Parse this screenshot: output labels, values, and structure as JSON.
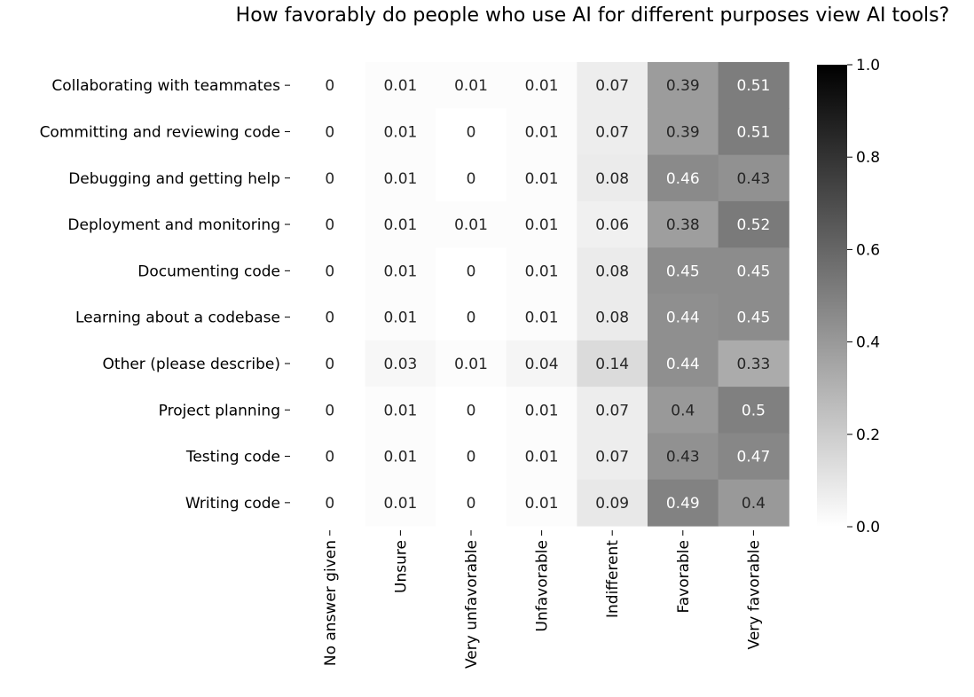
{
  "chart_data": {
    "type": "heatmap",
    "title": "How favorably do people who use AI for different purposes view AI tools?",
    "rows": [
      "Collaborating with teammates",
      "Committing and reviewing code",
      "Debugging and getting help",
      "Deployment and monitoring",
      "Documenting code",
      "Learning about a codebase",
      "Other (please describe)",
      "Project planning",
      "Testing code",
      "Writing code"
    ],
    "columns": [
      "No answer given",
      "Unsure",
      "Very unfavorable",
      "Unfavorable",
      "Indifferent",
      "Favorable",
      "Very favorable"
    ],
    "values": [
      [
        0,
        0.01,
        0.01,
        0.01,
        0.07,
        0.39,
        0.51
      ],
      [
        0,
        0.01,
        0,
        0.01,
        0.07,
        0.39,
        0.51
      ],
      [
        0,
        0.01,
        0,
        0.01,
        0.08,
        0.46,
        0.43
      ],
      [
        0,
        0.01,
        0.01,
        0.01,
        0.06,
        0.38,
        0.52
      ],
      [
        0,
        0.01,
        0,
        0.01,
        0.08,
        0.45,
        0.45
      ],
      [
        0,
        0.01,
        0,
        0.01,
        0.08,
        0.44,
        0.45
      ],
      [
        0,
        0.03,
        0.01,
        0.04,
        0.14,
        0.44,
        0.33
      ],
      [
        0,
        0.01,
        0,
        0.01,
        0.07,
        0.4,
        0.5
      ],
      [
        0,
        0.01,
        0,
        0.01,
        0.07,
        0.43,
        0.47
      ],
      [
        0,
        0.01,
        0,
        0.01,
        0.09,
        0.49,
        0.4
      ]
    ],
    "colorbar": {
      "range": [
        0,
        1
      ],
      "ticks": [
        0.0,
        0.2,
        0.4,
        0.6,
        0.8,
        1.0
      ],
      "tick_labels": [
        "0.0",
        "0.2",
        "0.4",
        "0.6",
        "0.8",
        "1.0"
      ],
      "colormap": "Greys",
      "low_color": "#ffffff",
      "high_color": "#000000"
    }
  }
}
